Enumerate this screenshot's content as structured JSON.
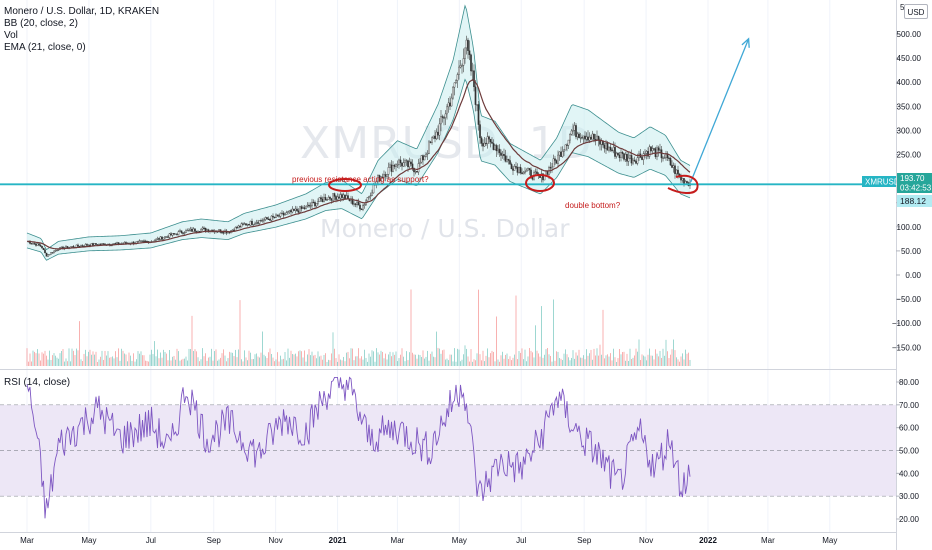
{
  "legend": {
    "title": "Monero / U.S. Dollar, 1D, KRAKEN",
    "bb": "BB (20, close, 2)",
    "vol": "Vol",
    "ema": "EMA (21, close, 0)",
    "rsi": "RSI (14, close)"
  },
  "watermark": {
    "symbol": "XMRUSD, 1D",
    "name": "Monero / U.S. Dollar"
  },
  "unit_button": "USD",
  "annotations": {
    "support_text": "previous resistance acting as support?",
    "double_bottom_text": "double bottom?"
  },
  "badges": {
    "symbol": "XMRUSD",
    "price": "193.70",
    "countdown": "03:42:53",
    "line_price": "188.12"
  },
  "colors": {
    "up": "#26a69a",
    "down": "#ef5350",
    "bb_fill": "#c9ecef",
    "bb_line": "#3d8f8f",
    "ema": "#6d3a3a",
    "support_line": "#26b5c4",
    "projection": "#3fa8d6",
    "annotation": "#c51c1c",
    "rsi_line": "#7e57c2",
    "rsi_band": "#ede7f6"
  },
  "chart_data": [
    {
      "type": "line",
      "title": "Monero / U.S. Dollar, 1D, KRAKEN",
      "x_ticks": [
        "Mar",
        "May",
        "Jul",
        "Sep",
        "Nov",
        "2021",
        "Mar",
        "May",
        "Jul",
        "Sep",
        "Nov",
        "2022",
        "Mar",
        "May"
      ],
      "y_ticks": [
        "500.00",
        "450.00",
        "400.00",
        "350.00",
        "300.00",
        "250.00",
        "200.00",
        "150.00",
        "100.00",
        "50.00",
        "0.00",
        "−50.00",
        "−100.00",
        "−150.00"
      ],
      "y_top_label": "5…",
      "ylim": [
        -150,
        550
      ],
      "support_level": 188.12,
      "last_price": 193.7,
      "series": [
        {
          "name": "XMRUSD",
          "x": [
            "2020-03-01",
            "2020-03-15",
            "2020-03-20",
            "2020-04-01",
            "2020-05-01",
            "2020-06-01",
            "2020-07-01",
            "2020-08-01",
            "2020-08-20",
            "2020-09-15",
            "2020-10-01",
            "2020-11-01",
            "2020-12-01",
            "2020-12-20",
            "2021-01-05",
            "2021-01-25",
            "2021-02-10",
            "2021-03-01",
            "2021-03-20",
            "2021-04-10",
            "2021-04-25",
            "2021-05-07",
            "2021-05-15",
            "2021-05-22",
            "2021-06-05",
            "2021-06-20",
            "2021-07-05",
            "2021-07-20",
            "2021-08-05",
            "2021-08-20",
            "2021-09-05",
            "2021-09-20",
            "2021-10-05",
            "2021-10-20",
            "2021-11-05",
            "2021-11-20",
            "2021-12-05",
            "2021-12-15"
          ],
          "values": [
            70,
            60,
            40,
            55,
            63,
            65,
            70,
            90,
            95,
            90,
            105,
            120,
            140,
            160,
            165,
            140,
            200,
            235,
            220,
            300,
            380,
            480,
            400,
            280,
            270,
            230,
            215,
            200,
            240,
            300,
            290,
            270,
            250,
            240,
            260,
            245,
            200,
            190
          ]
        }
      ],
      "projection": {
        "from": [
          "2021-12-15",
          193
        ],
        "to": [
          "2022-02-10",
          490
        ]
      }
    },
    {
      "type": "line",
      "title": "RSI (14, close)",
      "y_ticks": [
        "80.00",
        "70.00",
        "60.00",
        "50.00",
        "40.00",
        "30.00",
        "20.00"
      ],
      "ylim": [
        16,
        84
      ],
      "bands": [
        30,
        70
      ],
      "series": [
        {
          "name": "RSI",
          "x": [
            "2020-03-01",
            "2020-03-10",
            "2020-03-20",
            "2020-04-01",
            "2020-04-20",
            "2020-05-10",
            "2020-06-01",
            "2020-07-01",
            "2020-07-20",
            "2020-08-05",
            "2020-08-25",
            "2020-09-15",
            "2020-10-15",
            "2020-11-10",
            "2020-12-01",
            "2020-12-20",
            "2021-01-10",
            "2021-02-01",
            "2021-03-01",
            "2021-04-01",
            "2021-04-25",
            "2021-05-05",
            "2021-05-20",
            "2021-06-10",
            "2021-07-01",
            "2021-07-20",
            "2021-08-05",
            "2021-08-25",
            "2021-09-15",
            "2021-10-05",
            "2021-10-25",
            "2021-11-10",
            "2021-11-25",
            "2021-12-05",
            "2021-12-15"
          ],
          "values": [
            80,
            58,
            22,
            52,
            60,
            68,
            55,
            62,
            50,
            78,
            55,
            62,
            48,
            65,
            58,
            75,
            80,
            55,
            60,
            50,
            72,
            80,
            30,
            45,
            42,
            55,
            74,
            58,
            48,
            35,
            58,
            42,
            56,
            35,
            40
          ]
        }
      ]
    }
  ]
}
